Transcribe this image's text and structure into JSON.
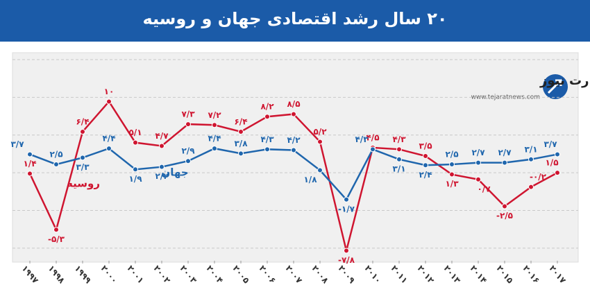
{
  "chart_data": {
    "type": "line",
    "title": "۲۰ سال رشد اقتصادی جهان و روسیه",
    "annotations": [
      "تجارت نیوز",
      "www.tejaratnews.com"
    ],
    "categories": [
      "۱۹۹۷",
      "۱۹۹۸",
      "۱۹۹۹",
      "۲۰۰۰",
      "۲۰۰۱",
      "۲۰۰۲",
      "۲۰۰۳",
      "۲۰۰۴",
      "۲۰۰۵",
      "۲۰۰۶",
      "۲۰۰۷",
      "۲۰۰۸",
      "۲۰۰۹",
      "۲۰۱۰",
      "۲۰۱۱",
      "۲۰۱۲",
      "۲۰۱۳",
      "۲۰۱۴",
      "۲۰۱۵",
      "۲۰۱۶",
      "۲۰۱۷"
    ],
    "series": [
      {
        "name": "روسیه",
        "color": "#cf1530",
        "values": [
          1.4,
          -5.3,
          6.4,
          10,
          5.1,
          4.7,
          7.3,
          7.2,
          6.4,
          8.2,
          8.5,
          5.2,
          -7.8,
          4.5,
          4.3,
          3.5,
          1.3,
          0.7,
          -2.5,
          -0.2,
          1.5
        ],
        "value_labels": [
          "۱/۴",
          "-۵/۳",
          "۶/۴",
          "۱۰",
          "۵/۱",
          "۴/۷",
          "۷/۳",
          "۷/۲",
          "۶/۴",
          "۸/۲",
          "۸/۵",
          "۵/۲",
          "-۷/۸",
          "۴/۵",
          "۴/۳",
          "۳/۵",
          "۱/۳",
          "۰/۷",
          "-۲/۵",
          "-۰/۲",
          "۱/۵"
        ]
      },
      {
        "name": "جهان",
        "color": "#1f66ad",
        "values": [
          3.7,
          2.5,
          3.3,
          4.4,
          1.9,
          2.2,
          2.9,
          4.4,
          3.8,
          4.3,
          4.2,
          1.8,
          -1.7,
          4.3,
          3.1,
          2.4,
          2.5,
          2.7,
          2.7,
          3.1,
          3.7
        ],
        "value_labels": [
          "۳/۷",
          "۲/۵",
          "۳/۳",
          "۴/۴",
          "۱/۹",
          "۲/۲",
          "۲/۹",
          "۴/۴",
          "۳/۸",
          "۴/۳",
          "۴/۲",
          "۱/۸",
          "-۱/۷",
          "۴/۳",
          "۳/۱",
          "۲/۴",
          "۲/۵",
          "۲/۷",
          "۲/۷",
          "۳/۱",
          "۳/۷"
        ]
      }
    ],
    "ylim": [
      -9,
      15.5
    ],
    "yticks": [
      -7.5,
      -3,
      1.5,
      6,
      10.5,
      15
    ],
    "grid": true
  }
}
